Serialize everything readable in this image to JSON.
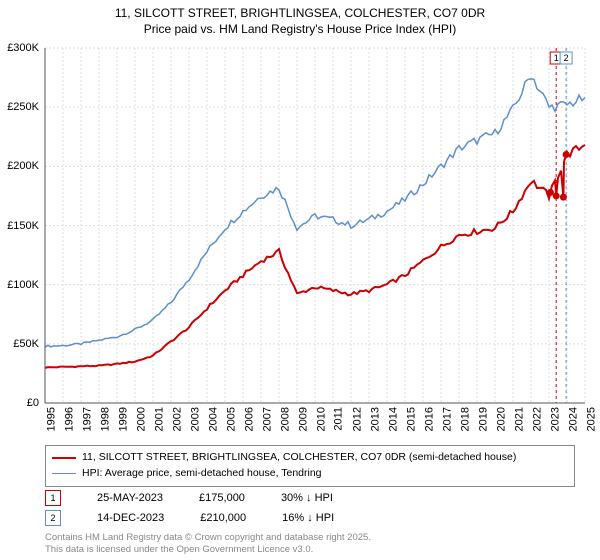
{
  "title_line1": "11, SILCOTT STREET, BRIGHTLINGSEA, COLCHESTER, CO7 0DR",
  "title_line2": "Price paid vs. HM Land Registry's House Price Index (HPI)",
  "chart": {
    "type": "line",
    "plot_bg": "#ffffff",
    "grid_color": "#dddddd",
    "grid_dash": "2,2",
    "axis_color": "#555555",
    "ylim": [
      0,
      300000
    ],
    "ytick_step": 50000,
    "yticks": [
      "£0",
      "£50K",
      "£100K",
      "£150K",
      "£200K",
      "£250K",
      "£300K"
    ],
    "x_start_year": 1995,
    "x_end_year": 2025,
    "xticks": [
      1995,
      1996,
      1997,
      1998,
      1999,
      2000,
      2001,
      2002,
      2003,
      2004,
      2005,
      2006,
      2007,
      2008,
      2009,
      2010,
      2011,
      2012,
      2013,
      2014,
      2015,
      2016,
      2017,
      2018,
      2019,
      2020,
      2021,
      2022,
      2023,
      2024,
      2025
    ],
    "series": [
      {
        "name": "price_paid",
        "label": "11, SILCOTT STREET, BRIGHTLINGSEA, COLCHESTER, CO7 0DR (semi-detached house)",
        "color": "#cc0000",
        "line_width": 2,
        "values": [
          30000,
          30500,
          31000,
          31500,
          33000,
          35000,
          40000,
          52000,
          64000,
          80000,
          95000,
          108000,
          120000,
          128000,
          92000,
          98000,
          95000,
          92000,
          95000,
          100000,
          108000,
          120000,
          132000,
          142000,
          145000,
          148000,
          162000,
          188000,
          175000,
          210000,
          218000
        ],
        "overlay_points": [
          {
            "x": 2023.08,
            "y": 178000
          },
          {
            "x": 2023.4,
            "y": 175000
          },
          {
            "x": 2023.8,
            "y": 174000
          },
          {
            "x": 2023.95,
            "y": 210000
          }
        ]
      },
      {
        "name": "hpi",
        "label": "HPI: Average price, semi-detached house, Tendring",
        "color": "#5b8fce",
        "line_width": 1.5,
        "values": [
          48000,
          48500,
          50000,
          53000,
          56000,
          62000,
          70000,
          85000,
          105000,
          128000,
          148000,
          162000,
          175000,
          182000,
          148000,
          158000,
          155000,
          150000,
          155000,
          162000,
          172000,
          185000,
          200000,
          215000,
          222000,
          228000,
          248000,
          278000,
          250000,
          252000,
          258000
        ]
      }
    ],
    "markers": [
      {
        "num": "1",
        "year": 2023.4,
        "color": "#cc0000",
        "date": "25-MAY-2023",
        "price": "£175,000",
        "delta": "30% ↓ HPI"
      },
      {
        "num": "2",
        "year": 2023.95,
        "color": "#5b8fce",
        "date": "14-DEC-2023",
        "price": "£210,000",
        "delta": "16% ↓ HPI"
      }
    ]
  },
  "footer_line1": "Contains HM Land Registry data © Crown copyright and database right 2025.",
  "footer_line2": "This data is licensed under the Open Government Licence v3.0."
}
